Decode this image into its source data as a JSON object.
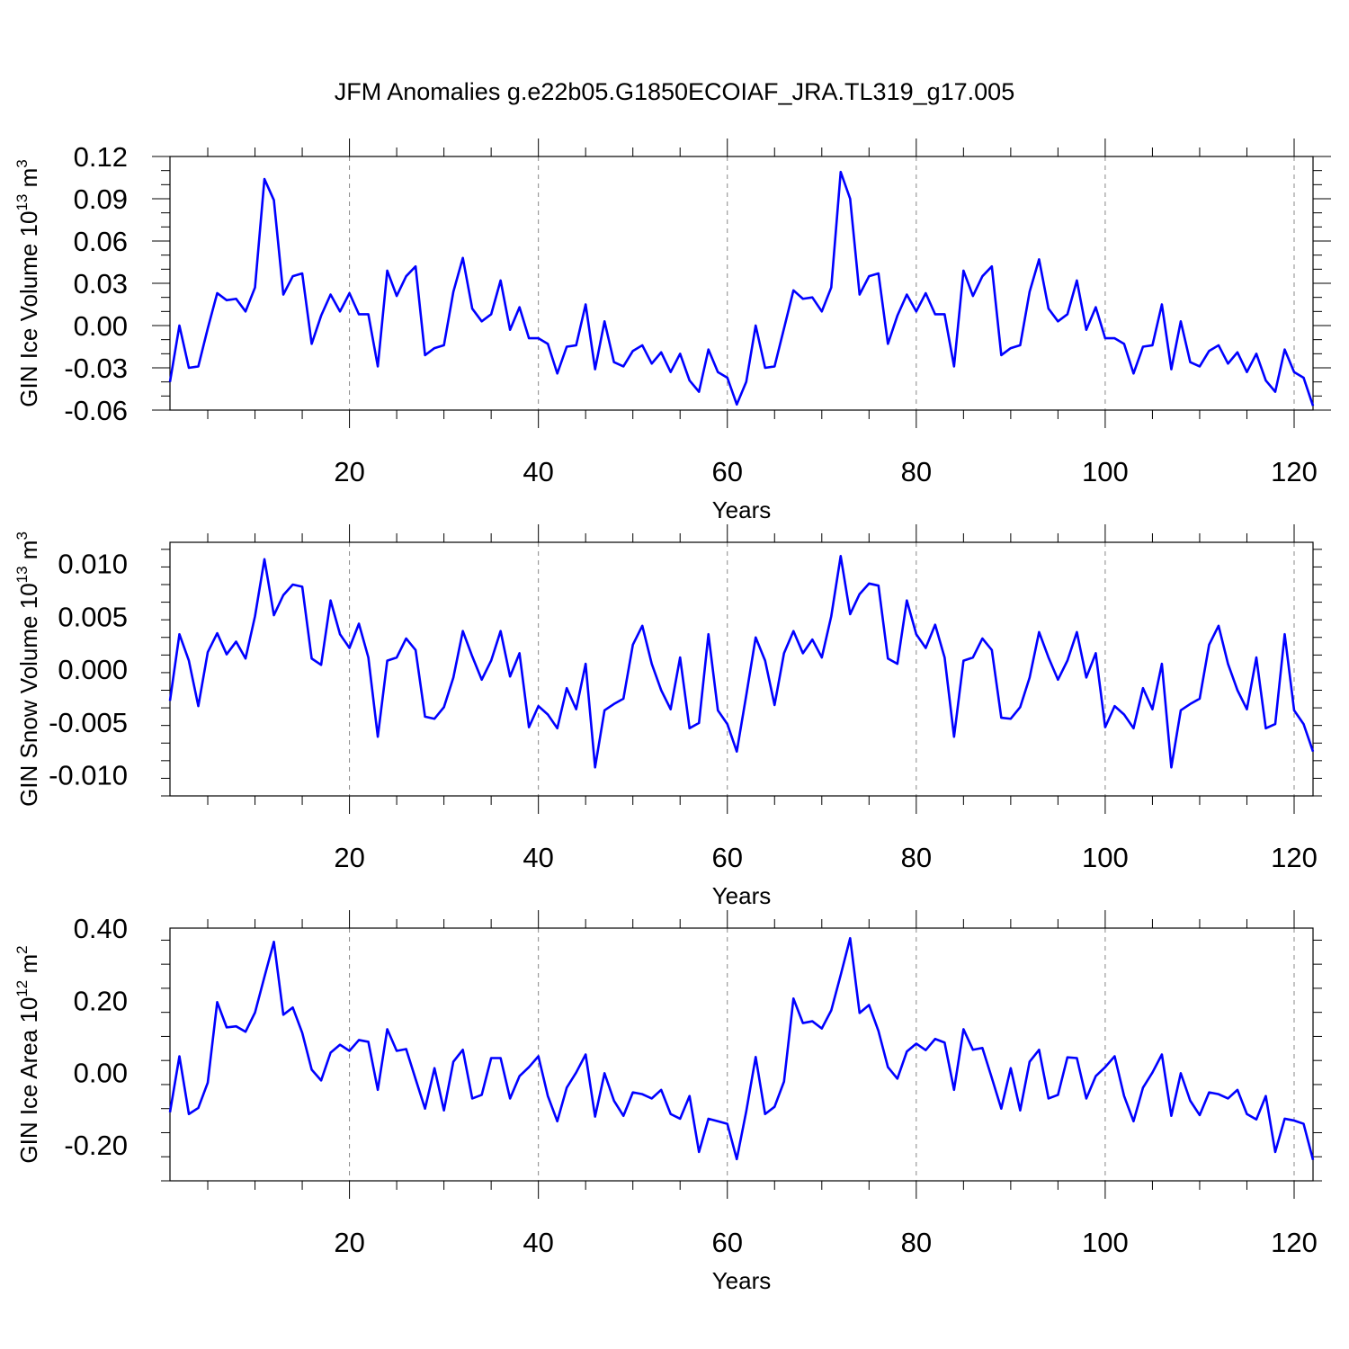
{
  "figure_title": "JFM Anomalies g.e22b05.G1850ECOIAF_JRA.TL319_g17.005",
  "line_color": "#0000ff",
  "chart_data": [
    {
      "type": "line",
      "xlabel": "Years",
      "ylabel_text": "GIN Ice Volume 10",
      "ylabel_exp": "13",
      "ylabel_unit": " m",
      "ylabel_unit_exp": "3",
      "xlim": [
        1,
        122
      ],
      "ylim": [
        -0.06,
        0.12
      ],
      "x_ticks": [
        20,
        40,
        60,
        80,
        100,
        120
      ],
      "x_tick_labels": [
        "20",
        "40",
        "60",
        "80",
        "100",
        "120"
      ],
      "y_ticks": [
        -0.06,
        -0.03,
        0.0,
        0.03,
        0.06,
        0.09,
        0.12
      ],
      "y_tick_labels": [
        "-0.06",
        "-0.03",
        "0.00",
        "0.03",
        "0.06",
        "0.09",
        "0.12"
      ],
      "x_start": 1,
      "values": [
        -0.04,
        0.0,
        -0.03,
        -0.029,
        -0.002,
        0.023,
        0.018,
        0.019,
        0.01,
        0.027,
        0.104,
        0.089,
        0.022,
        0.035,
        0.037,
        -0.013,
        0.007,
        0.022,
        0.01,
        0.023,
        0.008,
        0.008,
        -0.029,
        0.039,
        0.021,
        0.035,
        0.042,
        -0.021,
        -0.016,
        -0.014,
        0.024,
        0.048,
        0.012,
        0.003,
        0.008,
        0.032,
        -0.003,
        0.013,
        -0.009,
        -0.009,
        -0.013,
        -0.034,
        -0.015,
        -0.014,
        0.015,
        -0.031,
        0.003,
        -0.026,
        -0.029,
        -0.018,
        -0.014,
        -0.027,
        -0.019,
        -0.033,
        -0.02,
        -0.039,
        -0.047,
        -0.017,
        -0.033,
        -0.037,
        -0.056,
        -0.04,
        0.0,
        -0.03,
        -0.029,
        -0.002,
        0.025,
        0.019,
        0.02,
        0.01,
        0.027,
        0.109,
        0.09,
        0.022,
        0.035,
        0.037,
        -0.013,
        0.007,
        0.022,
        0.01,
        0.023,
        0.008,
        0.008,
        -0.029,
        0.039,
        0.021,
        0.035,
        0.042,
        -0.021,
        -0.016,
        -0.014,
        0.024,
        0.047,
        0.012,
        0.003,
        0.008,
        0.032,
        -0.003,
        0.013,
        -0.009,
        -0.009,
        -0.013,
        -0.034,
        -0.015,
        -0.014,
        0.015,
        -0.031,
        0.003,
        -0.026,
        -0.029,
        -0.018,
        -0.014,
        -0.027,
        -0.019,
        -0.033,
        -0.02,
        -0.039,
        -0.047,
        -0.017,
        -0.033,
        -0.037,
        -0.057
      ]
    },
    {
      "type": "line",
      "xlabel": "Years",
      "ylabel_text": "GIN Snow Volume 10",
      "ylabel_exp": "13",
      "ylabel_unit": " m",
      "ylabel_unit_exp": "3",
      "xlim": [
        1,
        122
      ],
      "ylim": [
        -0.012,
        0.012
      ],
      "x_ticks": [
        20,
        40,
        60,
        80,
        100,
        120
      ],
      "x_tick_labels": [
        "20",
        "40",
        "60",
        "80",
        "100",
        "120"
      ],
      "y_ticks": [
        -0.01,
        -0.005,
        0.0,
        0.005,
        0.01
      ],
      "y_tick_labels": [
        "-0.010",
        "-0.005",
        "0.000",
        "0.005",
        "0.010"
      ],
      "x_start": 1,
      "values": [
        -0.003,
        0.0033,
        0.0008,
        -0.0035,
        0.0016,
        0.0034,
        0.0014,
        0.0026,
        0.001,
        0.005,
        0.0104,
        0.0051,
        0.007,
        0.008,
        0.0078,
        0.001,
        0.0004,
        0.0065,
        0.0033,
        0.002,
        0.0043,
        0.0011,
        -0.0064,
        0.0008,
        0.0011,
        0.0029,
        0.0018,
        -0.0045,
        -0.0047,
        -0.0036,
        -0.0008,
        0.0036,
        0.0012,
        -0.001,
        0.0008,
        0.0036,
        -0.0007,
        0.0015,
        -0.0055,
        -0.0035,
        -0.0043,
        -0.0056,
        -0.0018,
        -0.0038,
        0.0005,
        -0.0093,
        -0.0039,
        -0.0033,
        -0.0028,
        0.0023,
        0.0041,
        0.0005,
        -0.002,
        -0.0038,
        0.0011,
        -0.0056,
        -0.0051,
        0.0033,
        -0.0039,
        -0.0052,
        -0.0078,
        -0.0025,
        0.003,
        0.0008,
        -0.0034,
        0.0015,
        0.0036,
        0.0015,
        0.0028,
        0.0011,
        0.005,
        0.0107,
        0.0052,
        0.0071,
        0.0081,
        0.0079,
        0.001,
        0.0005,
        0.0065,
        0.0033,
        0.002,
        0.0042,
        0.0011,
        -0.0064,
        0.0008,
        0.0011,
        0.0029,
        0.0018,
        -0.0046,
        -0.0047,
        -0.0036,
        -0.0008,
        0.0035,
        0.0011,
        -0.001,
        0.0008,
        0.0035,
        -0.0008,
        0.0015,
        -0.0055,
        -0.0035,
        -0.0043,
        -0.0056,
        -0.0018,
        -0.0038,
        0.0005,
        -0.0093,
        -0.0039,
        -0.0033,
        -0.0028,
        0.0023,
        0.0041,
        0.0005,
        -0.002,
        -0.0038,
        0.0011,
        -0.0056,
        -0.0052,
        0.0033,
        -0.0039,
        -0.0052,
        -0.0078
      ]
    },
    {
      "type": "line",
      "xlabel": "Years",
      "ylabel_text": "GIN Ice Area 10",
      "ylabel_exp": "12",
      "ylabel_unit": " m",
      "ylabel_unit_exp": "2",
      "xlim": [
        1,
        122
      ],
      "ylim": [
        -0.3,
        0.4
      ],
      "x_ticks": [
        20,
        40,
        60,
        80,
        100,
        120
      ],
      "x_tick_labels": [
        "20",
        "40",
        "60",
        "80",
        "100",
        "120"
      ],
      "y_ticks": [
        -0.2,
        0.0,
        0.2,
        0.4
      ],
      "y_tick_labels": [
        "-0.20",
        "0.00",
        "0.20",
        "0.40"
      ],
      "x_start": 1,
      "values": [
        -0.11,
        0.045,
        -0.115,
        -0.098,
        -0.028,
        0.195,
        0.125,
        0.128,
        0.113,
        0.166,
        0.265,
        0.362,
        0.16,
        0.18,
        0.11,
        0.008,
        -0.022,
        0.055,
        0.077,
        0.06,
        0.09,
        0.085,
        -0.048,
        0.12,
        0.06,
        0.065,
        -0.018,
        -0.1,
        0.012,
        -0.105,
        0.03,
        0.063,
        -0.072,
        -0.062,
        0.04,
        0.04,
        -0.072,
        -0.01,
        0.015,
        0.045,
        -0.065,
        -0.135,
        -0.042,
        0.0,
        0.05,
        -0.122,
        -0.002,
        -0.078,
        -0.12,
        -0.055,
        -0.06,
        -0.072,
        -0.048,
        -0.115,
        -0.128,
        -0.065,
        -0.22,
        -0.128,
        -0.135,
        -0.142,
        -0.24,
        -0.108,
        0.043,
        -0.115,
        -0.095,
        -0.025,
        0.205,
        0.137,
        0.142,
        0.122,
        0.172,
        0.27,
        0.372,
        0.165,
        0.187,
        0.115,
        0.015,
        -0.017,
        0.058,
        0.08,
        0.062,
        0.093,
        0.083,
        -0.048,
        0.12,
        0.063,
        0.068,
        -0.015,
        -0.1,
        0.012,
        -0.105,
        0.03,
        0.063,
        -0.072,
        -0.062,
        0.042,
        0.04,
        -0.072,
        -0.01,
        0.015,
        0.045,
        -0.065,
        -0.135,
        -0.042,
        0.0,
        0.05,
        -0.12,
        -0.002,
        -0.078,
        -0.118,
        -0.055,
        -0.06,
        -0.072,
        -0.048,
        -0.115,
        -0.13,
        -0.065,
        -0.22,
        -0.128,
        -0.133,
        -0.142,
        -0.242
      ]
    }
  ]
}
